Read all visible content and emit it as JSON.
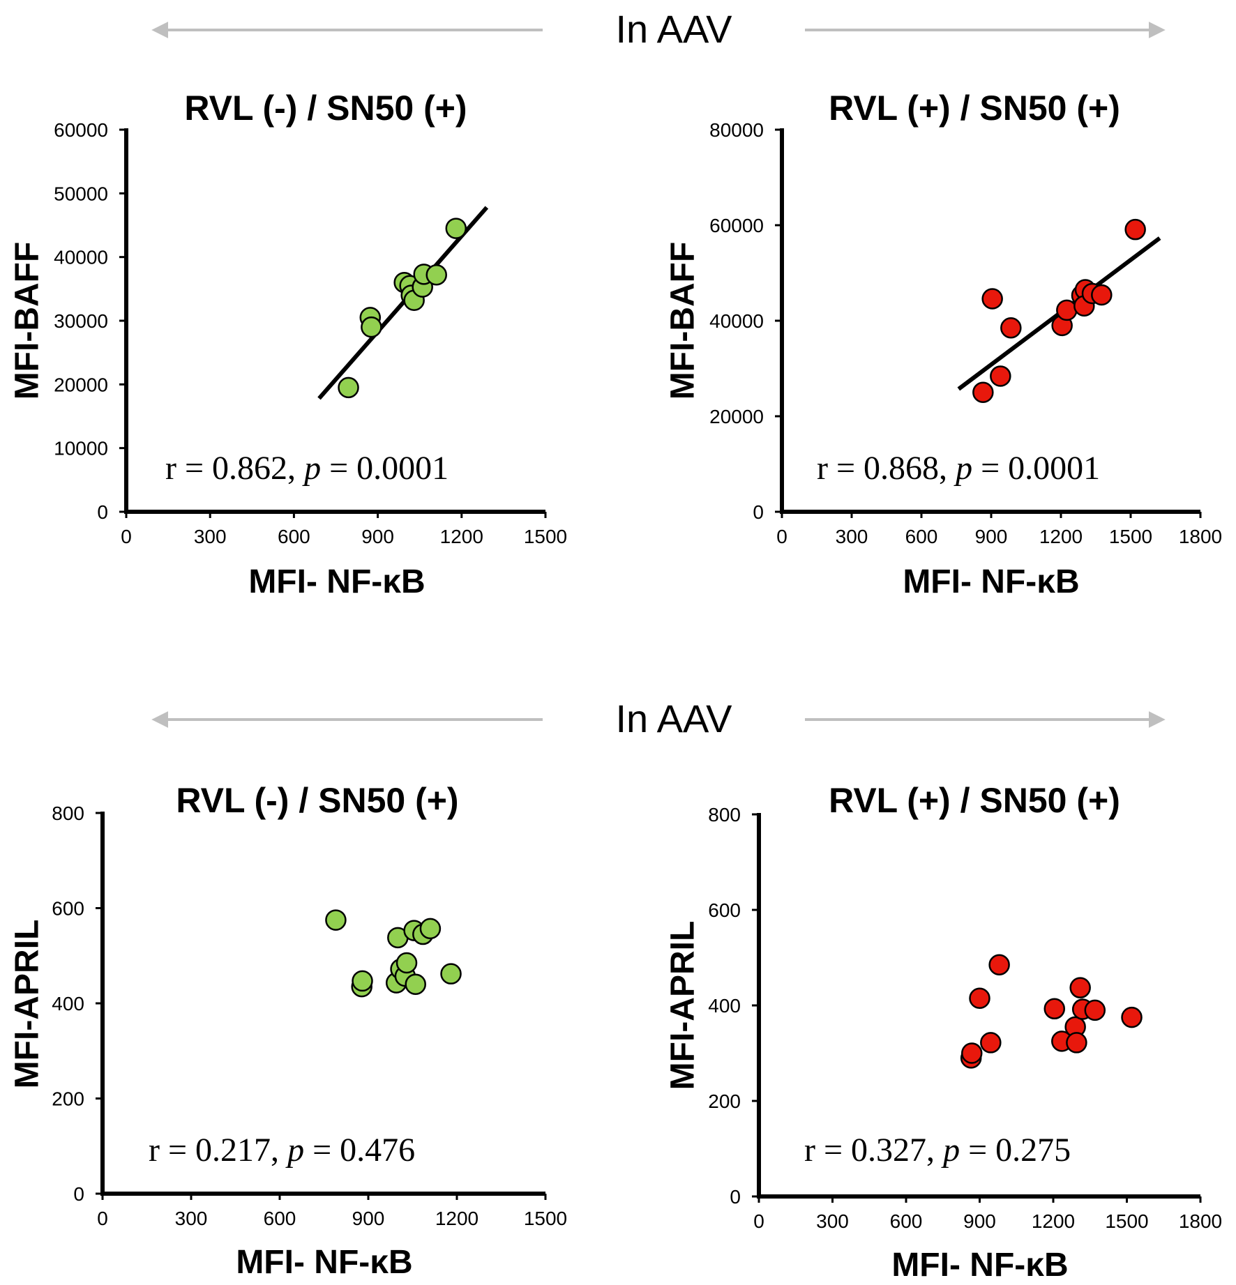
{
  "banners": [
    {
      "text": "In AAV"
    },
    {
      "text": "In AAV"
    }
  ],
  "colors": {
    "green_marker": "#92D050",
    "red_marker": "#E8180C",
    "arrow": "#BFBFBF",
    "axis": "#000000"
  },
  "chart_data": [
    {
      "type": "scatter",
      "title": "RVL (-) / SN50 (+)",
      "xlabel": "MFI- NF-κB",
      "ylabel": "MFI-BAFF",
      "xlim": [
        0,
        1500
      ],
      "ylim": [
        0,
        60000
      ],
      "xticks": [
        "0",
        "300",
        "600",
        "900",
        "1200",
        "1500"
      ],
      "yticks": [
        "0",
        "10000",
        "20000",
        "30000",
        "40000",
        "50000",
        "60000"
      ],
      "color_name": "green",
      "points": [
        [
          795,
          19500
        ],
        [
          873,
          30500
        ],
        [
          877,
          29000
        ],
        [
          995,
          36000
        ],
        [
          1015,
          35500
        ],
        [
          1020,
          34000
        ],
        [
          1030,
          33200
        ],
        [
          1060,
          35300
        ],
        [
          1065,
          37300
        ],
        [
          1110,
          37200
        ],
        [
          1180,
          44500
        ]
      ],
      "trendline": {
        "x": [
          690,
          1290
        ],
        "y": [
          17800,
          47800
        ]
      },
      "stat": {
        "r": "r = 0.862, ",
        "p_label": "p",
        "p": " = 0.0001"
      }
    },
    {
      "type": "scatter",
      "title": "RVL (+) / SN50 (+)",
      "xlabel": "MFI- NF-κB",
      "ylabel": "MFI-BAFF",
      "xlim": [
        0,
        1800
      ],
      "ylim": [
        0,
        80000
      ],
      "xticks": [
        "0",
        "300",
        "600",
        "900",
        "1200",
        "1500",
        "1800"
      ],
      "yticks": [
        "0",
        "20000",
        "40000",
        "60000",
        "80000"
      ],
      "color_name": "red",
      "points": [
        [
          865,
          25000
        ],
        [
          905,
          44600
        ],
        [
          940,
          28400
        ],
        [
          985,
          38500
        ],
        [
          1205,
          39000
        ],
        [
          1225,
          42200
        ],
        [
          1290,
          45300
        ],
        [
          1305,
          46500
        ],
        [
          1300,
          43100
        ],
        [
          1335,
          45700
        ],
        [
          1375,
          45400
        ],
        [
          1520,
          59100
        ]
      ],
      "trendline": {
        "x": [
          760,
          1625
        ],
        "y": [
          25700,
          57300
        ]
      },
      "stat": {
        "r": "r = 0.868, ",
        "p_label": "p",
        "p": " = 0.0001"
      }
    },
    {
      "type": "scatter",
      "title": "RVL (-) / SN50 (+)",
      "xlabel": "MFI- NF-κB",
      "ylabel": "MFI-APRIL",
      "xlim": [
        0,
        1500
      ],
      "ylim": [
        0,
        800
      ],
      "xticks": [
        "0",
        "300",
        "600",
        "900",
        "1200",
        "1500"
      ],
      "yticks": [
        "0",
        "200",
        "400",
        "600",
        "800"
      ],
      "color_name": "green",
      "points": [
        [
          790,
          575
        ],
        [
          878,
          435
        ],
        [
          880,
          447
        ],
        [
          995,
          443
        ],
        [
          1000,
          538
        ],
        [
          1010,
          472
        ],
        [
          1025,
          457
        ],
        [
          1030,
          485
        ],
        [
          1055,
          553
        ],
        [
          1060,
          440
        ],
        [
          1085,
          545
        ],
        [
          1110,
          557
        ],
        [
          1180,
          462
        ]
      ],
      "stat": {
        "r": "r = 0.217, ",
        "p_label": "p",
        "p": " = 0.476"
      }
    },
    {
      "type": "scatter",
      "title": "RVL (+) / SN50 (+)",
      "xlabel": "MFI- NF-κB",
      "ylabel": "MFI-APRIL",
      "xlim": [
        0,
        1800
      ],
      "ylim": [
        0,
        800
      ],
      "xticks": [
        "0",
        "300",
        "600",
        "900",
        "1200",
        "1500",
        "1800"
      ],
      "yticks": [
        "0",
        "200",
        "400",
        "600",
        "800"
      ],
      "color_name": "red",
      "points": [
        [
          865,
          290
        ],
        [
          868,
          300
        ],
        [
          900,
          415
        ],
        [
          945,
          322
        ],
        [
          980,
          485
        ],
        [
          1205,
          393
        ],
        [
          1235,
          325
        ],
        [
          1290,
          355
        ],
        [
          1295,
          322
        ],
        [
          1310,
          437
        ],
        [
          1320,
          392
        ],
        [
          1370,
          390
        ],
        [
          1520,
          375
        ]
      ],
      "stat": {
        "r": "r = 0.327, ",
        "p_label": "p",
        "p": " = 0.275"
      }
    }
  ]
}
